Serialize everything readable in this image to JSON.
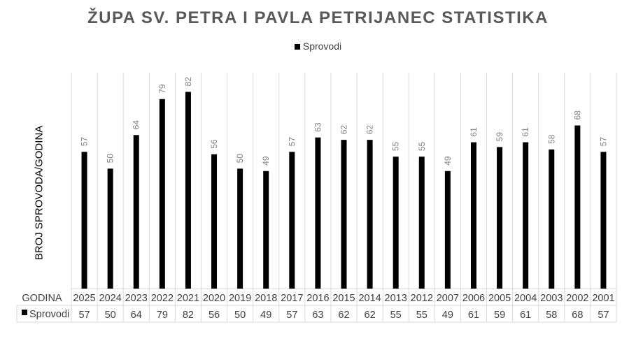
{
  "chart_data": {
    "type": "bar",
    "title": "ŽUPA SV. PETRA I PAVLA PETRIJANEC STATISTIKA",
    "xlabel": "GODINA",
    "ylabel": "BROJ SPROVODA/GODINA",
    "categories": [
      "2025",
      "2024",
      "2023",
      "2022",
      "2021",
      "2020",
      "2019",
      "2018",
      "2017",
      "2016",
      "2015",
      "2014",
      "2013",
      "2012",
      "2007",
      "2006",
      "2005",
      "2004",
      "2003",
      "2002",
      "2001"
    ],
    "series": [
      {
        "name": "Sprovodi",
        "color": "#000000",
        "values": [
          57,
          50,
          64,
          79,
          82,
          56,
          50,
          49,
          57,
          63,
          62,
          62,
          55,
          55,
          49,
          61,
          59,
          61,
          58,
          68,
          57
        ]
      }
    ],
    "ylim": [
      0,
      90
    ],
    "grid": "vertical",
    "legend": "top",
    "data_table": true,
    "data_labels": true
  }
}
